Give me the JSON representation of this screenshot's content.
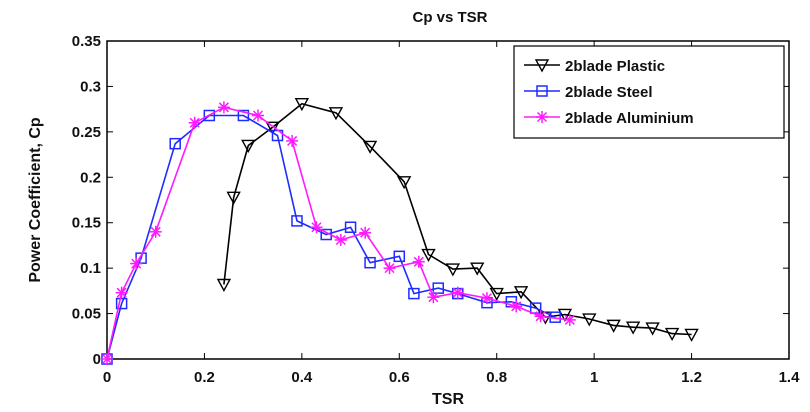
{
  "chart_data": {
    "type": "line",
    "title": "Cp vs TSR",
    "xlabel": "TSR",
    "ylabel": "Power Coefficient, Cp",
    "xlim": [
      0,
      1.4
    ],
    "ylim": [
      0,
      0.35
    ],
    "x_ticks": [
      0,
      0.2,
      0.4,
      0.6,
      0.8,
      1,
      1.2,
      1.4
    ],
    "x_tick_labels": [
      "0",
      "0.2",
      "0.4",
      "0.6",
      "0.8",
      "1",
      "1.2",
      "1.4"
    ],
    "y_ticks": [
      0,
      0.05,
      0.1,
      0.15,
      0.2,
      0.25,
      0.3,
      0.35
    ],
    "y_tick_labels": [
      "0",
      "0.05",
      "0.1",
      "0.15",
      "0.2",
      "0.25",
      "0.3",
      "0.35"
    ],
    "grid": false,
    "legend_position": "top-right",
    "series": [
      {
        "name": "2blade Plastic",
        "color": "#000000",
        "marker": "triangle-down",
        "x": [
          0.24,
          0.26,
          0.29,
          0.34,
          0.4,
          0.47,
          0.54,
          0.61,
          0.66,
          0.71,
          0.76,
          0.8,
          0.85,
          0.9,
          0.94,
          0.99,
          1.04,
          1.08,
          1.12,
          1.16,
          1.2
        ],
        "y": [
          0.082,
          0.178,
          0.235,
          0.255,
          0.281,
          0.271,
          0.234,
          0.195,
          0.115,
          0.099,
          0.1,
          0.072,
          0.074,
          0.046,
          0.049,
          0.044,
          0.037,
          0.035,
          0.034,
          0.028,
          0.027
        ]
      },
      {
        "name": "2blade Steel",
        "color": "#1f2cff",
        "marker": "square",
        "x": [
          0,
          0.03,
          0.07,
          0.14,
          0.21,
          0.28,
          0.35,
          0.39,
          0.45,
          0.5,
          0.54,
          0.6,
          0.63,
          0.68,
          0.72,
          0.78,
          0.83,
          0.88,
          0.92
        ],
        "y": [
          0,
          0.061,
          0.111,
          0.237,
          0.268,
          0.268,
          0.246,
          0.152,
          0.137,
          0.145,
          0.106,
          0.113,
          0.072,
          0.078,
          0.072,
          0.062,
          0.063,
          0.056,
          0.046
        ]
      },
      {
        "name": "2blade Aluminium",
        "color": "#ff1aff",
        "marker": "star",
        "x": [
          0,
          0.03,
          0.06,
          0.1,
          0.18,
          0.24,
          0.31,
          0.38,
          0.43,
          0.48,
          0.53,
          0.58,
          0.64,
          0.67,
          0.72,
          0.78,
          0.84,
          0.89,
          0.95
        ],
        "y": [
          0,
          0.073,
          0.105,
          0.14,
          0.26,
          0.277,
          0.268,
          0.24,
          0.145,
          0.131,
          0.139,
          0.1,
          0.107,
          0.068,
          0.073,
          0.067,
          0.058,
          0.047,
          0.043
        ]
      }
    ]
  }
}
